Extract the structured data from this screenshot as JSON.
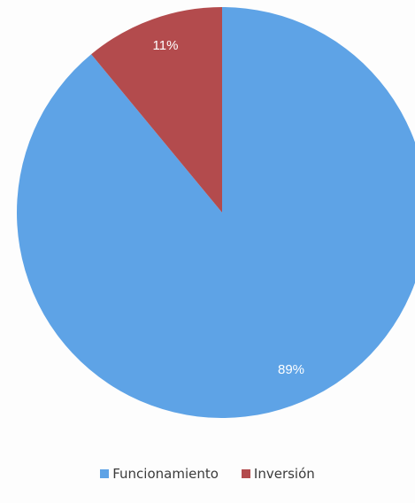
{
  "chart_data": {
    "type": "pie",
    "categories": [
      "Funcionamiento",
      "Inversión"
    ],
    "values": [
      89,
      11
    ],
    "labels": [
      "89%",
      "11%"
    ],
    "colors": [
      "#5ea3e6",
      "#b34b4d"
    ],
    "legend": {
      "placement": "bottom",
      "entries": [
        "Funcionamiento",
        "Inversión"
      ]
    }
  }
}
